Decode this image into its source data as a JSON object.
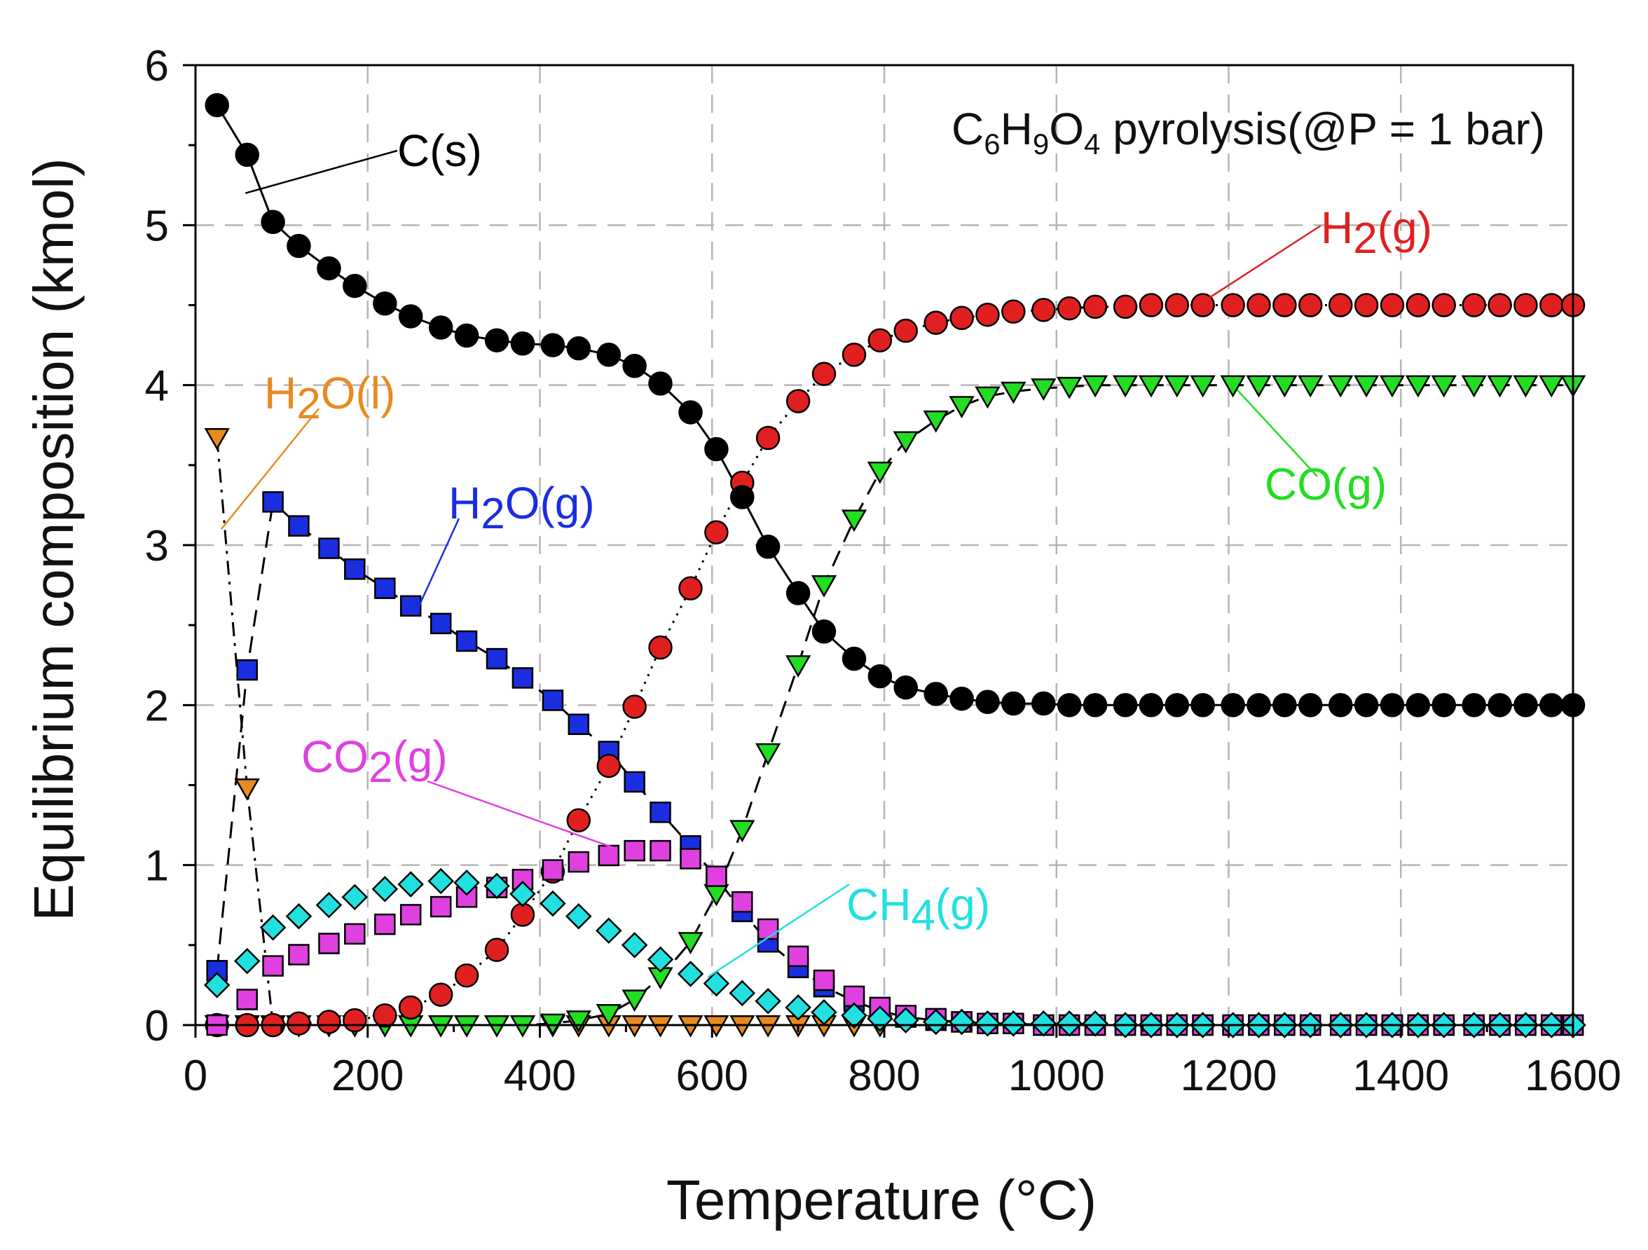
{
  "chart_data": {
    "type": "scatter",
    "title": "C6H9O4 pyrolysis(@P = 1 bar)",
    "title_parts": {
      "c": "C",
      "c_sub": "6",
      "h": "H",
      "h_sub": "9",
      "o": "O",
      "o_sub": "4",
      "rest": " pyrolysis(@P = 1 bar)"
    },
    "xlabel": "Temperature (°C)",
    "ylabel": "Equilibrium composition (kmol)",
    "xlim": [
      0,
      1600
    ],
    "ylim": [
      0,
      6
    ],
    "xticks": [
      "0",
      "200",
      "400",
      "600",
      "800",
      "1000",
      "1200",
      "1400",
      "1600"
    ],
    "yticks": [
      "0",
      "1",
      "2",
      "3",
      "4",
      "5",
      "6"
    ],
    "grid": true,
    "series": [
      {
        "name": "C(s)",
        "color": "#000000",
        "marker": "circle",
        "line": "solid",
        "x": [
          25,
          60,
          90,
          120,
          155,
          185,
          220,
          250,
          285,
          315,
          350,
          380,
          415,
          445,
          480,
          510,
          540,
          575,
          605,
          635,
          665,
          700,
          730,
          765,
          795,
          825,
          860,
          890,
          920,
          950,
          985,
          1015,
          1045,
          1080,
          1110,
          1140,
          1170,
          1205,
          1235,
          1265,
          1295,
          1330,
          1360,
          1390,
          1420,
          1450,
          1485,
          1515,
          1545,
          1575,
          1600
        ],
        "y": [
          5.75,
          5.44,
          5.02,
          4.87,
          4.73,
          4.62,
          4.51,
          4.43,
          4.36,
          4.31,
          4.28,
          4.26,
          4.25,
          4.23,
          4.19,
          4.12,
          4.01,
          3.83,
          3.6,
          3.3,
          2.99,
          2.7,
          2.46,
          2.29,
          2.18,
          2.11,
          2.07,
          2.04,
          2.02,
          2.01,
          2.01,
          2.0,
          2.0,
          2.0,
          2.0,
          2.0,
          2.0,
          2.0,
          2.0,
          2.0,
          2.0,
          2.0,
          2.0,
          2.0,
          2.0,
          2.0,
          2.0,
          2.0,
          2.0,
          2.0,
          2.0
        ]
      },
      {
        "name": "H2(g)",
        "color": "#e02020",
        "marker": "circle",
        "line": "dotted",
        "x": [
          25,
          60,
          90,
          120,
          155,
          185,
          220,
          250,
          285,
          315,
          350,
          380,
          415,
          445,
          480,
          510,
          540,
          575,
          605,
          635,
          665,
          700,
          730,
          765,
          795,
          825,
          860,
          890,
          920,
          950,
          985,
          1015,
          1045,
          1080,
          1110,
          1140,
          1170,
          1205,
          1235,
          1265,
          1295,
          1330,
          1360,
          1390,
          1420,
          1450,
          1485,
          1515,
          1545,
          1575,
          1600
        ],
        "y": [
          0,
          0,
          0,
          0.01,
          0.02,
          0.03,
          0.06,
          0.11,
          0.19,
          0.31,
          0.47,
          0.69,
          0.96,
          1.28,
          1.62,
          1.99,
          2.36,
          2.73,
          3.08,
          3.39,
          3.67,
          3.9,
          4.07,
          4.19,
          4.28,
          4.34,
          4.39,
          4.42,
          4.44,
          4.46,
          4.47,
          4.48,
          4.49,
          4.49,
          4.5,
          4.5,
          4.5,
          4.5,
          4.5,
          4.5,
          4.5,
          4.5,
          4.5,
          4.5,
          4.5,
          4.5,
          4.5,
          4.5,
          4.5,
          4.5,
          4.5
        ]
      },
      {
        "name": "CO(g)",
        "color": "#22dd22",
        "marker": "triangle-down",
        "line": "dashed",
        "x": [
          25,
          60,
          90,
          120,
          155,
          185,
          220,
          250,
          285,
          315,
          350,
          380,
          415,
          445,
          480,
          510,
          540,
          575,
          605,
          635,
          665,
          700,
          730,
          765,
          795,
          825,
          860,
          890,
          920,
          950,
          985,
          1015,
          1045,
          1080,
          1110,
          1140,
          1170,
          1205,
          1235,
          1265,
          1295,
          1330,
          1360,
          1390,
          1420,
          1450,
          1485,
          1515,
          1545,
          1575,
          1600
        ],
        "y": [
          0,
          0,
          0,
          0,
          0,
          0,
          0,
          0,
          0,
          0,
          0,
          0,
          0.01,
          0.03,
          0.07,
          0.16,
          0.3,
          0.52,
          0.82,
          1.22,
          1.7,
          2.25,
          2.75,
          3.16,
          3.46,
          3.65,
          3.78,
          3.87,
          3.93,
          3.96,
          3.98,
          3.99,
          4.0,
          4.0,
          4.0,
          4.0,
          4.0,
          4.0,
          4.0,
          4.0,
          4.0,
          4.0,
          4.0,
          4.0,
          4.0,
          4.0,
          4.0,
          4.0,
          4.0,
          4.0,
          4.0
        ]
      },
      {
        "name": "H2O(g)",
        "color": "#1a2ee0",
        "marker": "square",
        "line": "dashed",
        "x": [
          25,
          60,
          90,
          120,
          155,
          185,
          220,
          250,
          285,
          315,
          350,
          380,
          415,
          445,
          480,
          510,
          540,
          575,
          605,
          635,
          665,
          700,
          730,
          765,
          795,
          825,
          860,
          890,
          920,
          950,
          985,
          1015,
          1045,
          1080,
          1110,
          1140,
          1170,
          1205,
          1235,
          1265,
          1295,
          1330,
          1360,
          1390,
          1420,
          1450,
          1485,
          1515,
          1545,
          1575,
          1600
        ],
        "y": [
          0.34,
          2.22,
          3.27,
          3.12,
          2.98,
          2.85,
          2.73,
          2.62,
          2.51,
          2.4,
          2.29,
          2.17,
          2.03,
          1.88,
          1.71,
          1.52,
          1.33,
          1.12,
          0.92,
          0.71,
          0.52,
          0.36,
          0.24,
          0.15,
          0.09,
          0.05,
          0.03,
          0.02,
          0.01,
          0.01,
          0,
          0,
          0,
          0,
          0,
          0,
          0,
          0,
          0,
          0,
          0,
          0,
          0,
          0,
          0,
          0,
          0,
          0,
          0,
          0,
          0
        ]
      },
      {
        "name": "CO2(g)",
        "color": "#e040e0",
        "marker": "square",
        "line": "none",
        "x": [
          25,
          60,
          90,
          120,
          155,
          185,
          220,
          250,
          285,
          315,
          350,
          380,
          415,
          445,
          480,
          510,
          540,
          575,
          605,
          635,
          665,
          700,
          730,
          765,
          795,
          825,
          860,
          890,
          920,
          950,
          985,
          1015,
          1045,
          1080,
          1110,
          1140,
          1170,
          1205,
          1235,
          1265,
          1295,
          1330,
          1360,
          1390,
          1420,
          1450,
          1485,
          1515,
          1545,
          1575,
          1600
        ],
        "y": [
          0,
          0.16,
          0.37,
          0.44,
          0.51,
          0.57,
          0.63,
          0.69,
          0.74,
          0.8,
          0.86,
          0.91,
          0.97,
          1.02,
          1.06,
          1.09,
          1.09,
          1.04,
          0.93,
          0.77,
          0.6,
          0.43,
          0.28,
          0.18,
          0.11,
          0.06,
          0.04,
          0.02,
          0.01,
          0.01,
          0,
          0,
          0,
          0,
          0,
          0,
          0,
          0,
          0,
          0,
          0,
          0,
          0,
          0,
          0,
          0,
          0,
          0,
          0,
          0,
          0
        ]
      },
      {
        "name": "CH4(g)",
        "color": "#22e0e0",
        "marker": "diamond",
        "line": "none",
        "x": [
          25,
          60,
          90,
          120,
          155,
          185,
          220,
          250,
          285,
          315,
          350,
          380,
          415,
          445,
          480,
          510,
          540,
          575,
          605,
          635,
          665,
          700,
          730,
          765,
          795,
          825,
          860,
          890,
          920,
          950,
          985,
          1015,
          1045,
          1080,
          1110,
          1140,
          1170,
          1205,
          1235,
          1265,
          1295,
          1330,
          1360,
          1390,
          1420,
          1450,
          1485,
          1515,
          1545,
          1575,
          1600
        ],
        "y": [
          0.25,
          0.4,
          0.61,
          0.68,
          0.75,
          0.8,
          0.85,
          0.88,
          0.9,
          0.89,
          0.87,
          0.82,
          0.76,
          0.68,
          0.59,
          0.5,
          0.41,
          0.32,
          0.26,
          0.2,
          0.15,
          0.11,
          0.08,
          0.06,
          0.04,
          0.03,
          0.02,
          0.02,
          0.01,
          0.01,
          0.01,
          0.01,
          0.01,
          0,
          0,
          0,
          0,
          0,
          0,
          0,
          0,
          0,
          0,
          0,
          0,
          0,
          0,
          0,
          0,
          0,
          0
        ]
      },
      {
        "name": "H2O(l)",
        "color": "#e88a20",
        "marker": "triangle-down",
        "line": "dashdot",
        "x": [
          25,
          60,
          90,
          120,
          155,
          185,
          220,
          250,
          285,
          315,
          350,
          380,
          415,
          445,
          480,
          510,
          540,
          575,
          605,
          635,
          665,
          700,
          730,
          765,
          795
        ],
        "y": [
          3.67,
          1.48,
          0,
          0,
          0,
          0,
          0,
          0,
          0,
          0,
          0,
          0,
          0,
          0,
          0,
          0,
          0,
          0,
          0,
          0,
          0,
          0,
          0,
          0,
          0
        ]
      }
    ],
    "annotations": [
      {
        "text": "C(s)",
        "base": "C(s)",
        "sub": "",
        "tail": "",
        "color": "#000000",
        "point_to": [
          58,
          5.2
        ]
      },
      {
        "text": "H2(g)",
        "base": "H",
        "sub": "2",
        "tail": "(g)",
        "color": "#e02020",
        "point_to": [
          1170,
          4.52
        ]
      },
      {
        "text": "H2O(l)",
        "base": "H",
        "sub": "2",
        "tail": "O(l)",
        "color": "#e88a20",
        "point_to": [
          30,
          3.1
        ]
      },
      {
        "text": "H2O(g)",
        "base": "H",
        "sub": "2",
        "tail": "O(g)",
        "color": "#1a2ee0",
        "point_to": [
          258,
          2.6
        ]
      },
      {
        "text": "CO(g)",
        "base": "CO(g)",
        "sub": "",
        "tail": "",
        "color": "#22dd22",
        "point_to": [
          1210,
          3.97
        ]
      },
      {
        "text": "CO2(g)",
        "base": "CO",
        "sub": "2",
        "tail": "(g)",
        "color": "#e040e0",
        "point_to": [
          490,
          1.1
        ]
      },
      {
        "text": "CH4(g)",
        "base": "CH",
        "sub": "4",
        "tail": "(g)",
        "color": "#22e0e0",
        "point_to": [
          595,
          0.3
        ]
      }
    ]
  }
}
